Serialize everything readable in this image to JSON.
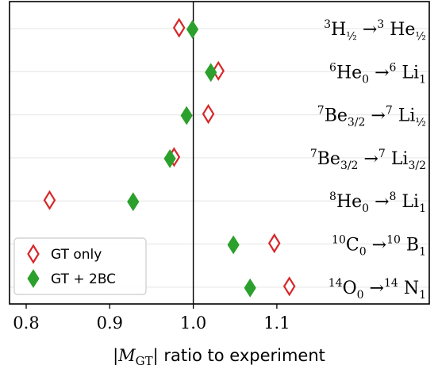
{
  "chart_data": {
    "type": "scatter",
    "orientation": "horizontal",
    "xlabel": {
      "math": "|M",
      "sub": "GT",
      "close": "|",
      "text": " ratio to experiment"
    },
    "xlim": [
      0.8,
      1.2
    ],
    "xticks": [
      "0.8",
      "0.9",
      "1.0",
      "1.1"
    ],
    "xtick_values": [
      0.8,
      0.9,
      1.0,
      1.1
    ],
    "reference_line": 1.0,
    "grid": "horizontal",
    "legend": {
      "placement": "lower-left",
      "entries": [
        {
          "label": "GT only",
          "marker": "open-diamond",
          "color": "#d62728"
        },
        {
          "label": "GT + 2BC",
          "marker": "filled-diamond",
          "color": "#2ca02c"
        }
      ]
    },
    "transitions": [
      {
        "label": "3H1/2 → 3He1/2",
        "parts": [
          [
            "sup",
            "3"
          ],
          [
            "t",
            "H"
          ],
          [
            "sub",
            "½"
          ],
          [
            "t",
            " →"
          ],
          [
            "sup",
            "3"
          ],
          [
            "t",
            " He"
          ],
          [
            "sub",
            "½"
          ]
        ]
      },
      {
        "label": "6He0 → 6Li1",
        "parts": [
          [
            "sup",
            "6"
          ],
          [
            "t",
            "He"
          ],
          [
            "sub",
            "0"
          ],
          [
            "t",
            " →"
          ],
          [
            "sup",
            "6"
          ],
          [
            "t",
            " Li"
          ],
          [
            "sub",
            "1"
          ]
        ]
      },
      {
        "label": "7Be3/2 → 7Li1/2",
        "parts": [
          [
            "sup",
            "7"
          ],
          [
            "t",
            "Be"
          ],
          [
            "sub",
            "3/2"
          ],
          [
            "t",
            " →"
          ],
          [
            "sup",
            "7"
          ],
          [
            "t",
            " Li"
          ],
          [
            "sub",
            "½"
          ]
        ]
      },
      {
        "label": "7Be3/2 → 7Li3/2",
        "parts": [
          [
            "sup",
            "7"
          ],
          [
            "t",
            "Be"
          ],
          [
            "sub",
            "3/2"
          ],
          [
            "t",
            " →"
          ],
          [
            "sup",
            "7"
          ],
          [
            "t",
            " Li"
          ],
          [
            "sub",
            "3/2"
          ]
        ]
      },
      {
        "label": "8He0 → 8Li1",
        "parts": [
          [
            "sup",
            "8"
          ],
          [
            "t",
            "He"
          ],
          [
            "sub",
            "0"
          ],
          [
            "t",
            " →"
          ],
          [
            "sup",
            "8"
          ],
          [
            "t",
            " Li"
          ],
          [
            "sub",
            "1"
          ]
        ]
      },
      {
        "label": "10C0 → 10B1",
        "parts": [
          [
            "sup",
            "10"
          ],
          [
            "t",
            "C"
          ],
          [
            "sub",
            "0"
          ],
          [
            "t",
            " →"
          ],
          [
            "sup",
            "10"
          ],
          [
            "t",
            " B"
          ],
          [
            "sub",
            "1"
          ]
        ]
      },
      {
        "label": "14O0 → 14N1",
        "parts": [
          [
            "sup",
            "14"
          ],
          [
            "t",
            "O"
          ],
          [
            "sub",
            "0"
          ],
          [
            "t",
            " →"
          ],
          [
            "sup",
            "14"
          ],
          [
            "t",
            " N"
          ],
          [
            "sub",
            "1"
          ]
        ]
      }
    ],
    "series": [
      {
        "name": "GT only",
        "values": [
          0.983,
          1.03,
          1.018,
          0.977,
          0.828,
          1.097,
          1.115
        ]
      },
      {
        "name": "GT + 2BC",
        "values": [
          0.999,
          1.021,
          0.992,
          0.972,
          0.928,
          1.048,
          1.068
        ]
      }
    ],
    "colors": {
      "gt_only": "#d62728",
      "gt_2bc": "#2ca02c"
    }
  }
}
